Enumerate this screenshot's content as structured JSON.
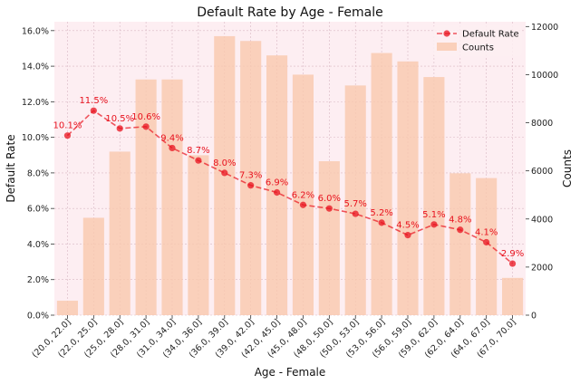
{
  "chart_data": {
    "type": "bar+line",
    "title": "Default Rate by Age - Female",
    "xlabel": "Age - Female",
    "ylabel": "Default Rate",
    "y2label": "Counts",
    "categories": [
      "(20.0, 22.0]",
      "(22.0, 25.0]",
      "(25.0, 28.0]",
      "(28.0, 31.0]",
      "(31.0, 34.0]",
      "(34.0, 36.0]",
      "(36.0, 39.0]",
      "(39.0, 42.0]",
      "(42.0, 45.0]",
      "(45.0, 48.0]",
      "(48.0, 50.0]",
      "(50.0, 53.0]",
      "(53.0, 56.0]",
      "(56.0, 59.0]",
      "(59.0, 62.0]",
      "(62.0, 64.0]",
      "(64.0, 67.0]",
      "(67.0, 70.0]"
    ],
    "series": [
      {
        "name": "Default Rate",
        "type": "line",
        "axis": "left",
        "color": "#e8121e",
        "values": [
          0.101,
          0.115,
          0.105,
          0.106,
          0.094,
          0.087,
          0.08,
          0.073,
          0.069,
          0.062,
          0.06,
          0.057,
          0.052,
          0.045,
          0.051,
          0.048,
          0.041,
          0.029
        ],
        "labels": [
          "10.1%",
          "11.5%",
          "10.5%",
          "10.6%",
          "9.4%",
          "8.7%",
          "8.0%",
          "7.3%",
          "6.9%",
          "6.2%",
          "6.0%",
          "5.7%",
          "5.2%",
          "4.5%",
          "5.1%",
          "4.8%",
          "4.1%",
          "2.9%"
        ]
      },
      {
        "name": "Counts",
        "type": "bar",
        "axis": "right",
        "color": "#f9c8ad",
        "values": [
          600,
          4050,
          6800,
          9800,
          9800,
          6650,
          11600,
          11400,
          10800,
          10000,
          6400,
          9550,
          10900,
          10550,
          9900,
          5900,
          5700,
          1550
        ]
      }
    ],
    "ylim": [
      0,
      0.165
    ],
    "y2lim": [
      0,
      12200
    ],
    "yticks": [
      "0.0%",
      "2.0%",
      "4.0%",
      "6.0%",
      "8.0%",
      "10.0%",
      "12.0%",
      "14.0%",
      "16.0%"
    ],
    "y2ticks": [
      "0",
      "2000",
      "4000",
      "6000",
      "8000",
      "10000",
      "12000"
    ],
    "legend": {
      "position": "top-right",
      "items": [
        "Default Rate",
        "Counts"
      ]
    },
    "grid": true,
    "background": "#fdeef2"
  }
}
